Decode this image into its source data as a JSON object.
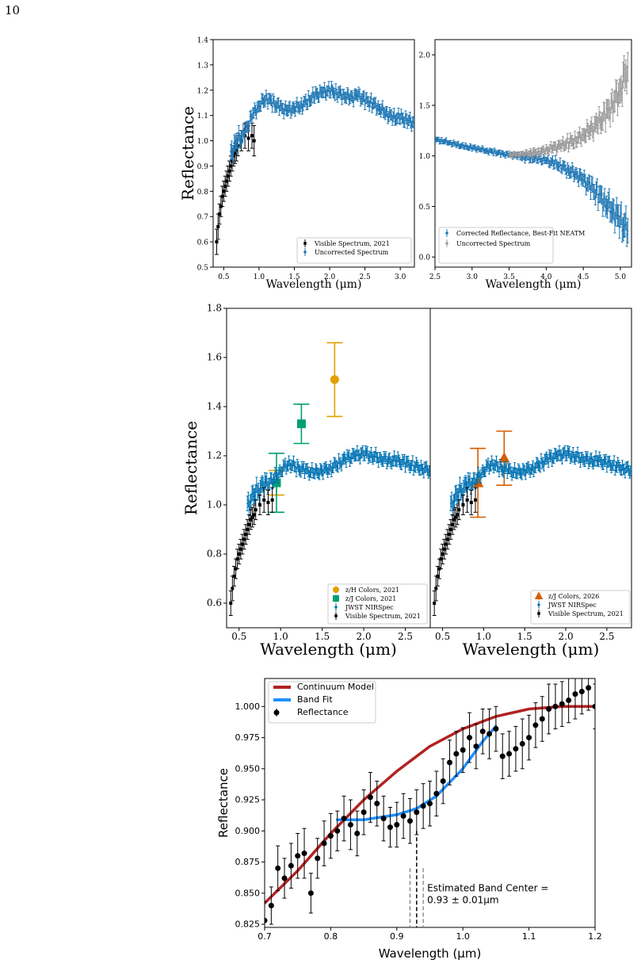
{
  "page_number": "10",
  "colors": {
    "blue": "#1f77b4",
    "nirspec": "#0072b2",
    "black": "#000000",
    "gray": "#999999",
    "orange": "#e69f00",
    "green": "#009e73",
    "vermilion": "#d55e00",
    "red": "#b22222",
    "bandfit": "#1e90ff"
  },
  "chart_data": [
    {
      "id": "top-left",
      "type": "scatter",
      "xlabel": "Wavelength (μm)",
      "ylabel": "Reflectance",
      "xlim": [
        0.35,
        3.2
      ],
      "ylim": [
        0.5,
        1.4
      ],
      "xticks": [
        "0.5",
        "1.0",
        "1.5",
        "2.0",
        "2.5",
        "3.0"
      ],
      "yticks": [
        "0.5",
        "0.6",
        "0.7",
        "0.8",
        "0.9",
        "1.0",
        "1.1",
        "1.2",
        "1.3",
        "1.4"
      ],
      "legend": "lower-right",
      "series": [
        {
          "name": "Visible Spectrum, 2021",
          "color": "#000000",
          "marker": "square",
          "x": [
            0.4,
            0.42,
            0.44,
            0.46,
            0.48,
            0.5,
            0.52,
            0.54,
            0.56,
            0.58,
            0.6,
            0.62,
            0.64,
            0.66,
            0.68,
            0.7,
            0.75,
            0.8,
            0.85,
            0.9,
            0.93
          ],
          "y": [
            0.6,
            0.66,
            0.71,
            0.74,
            0.78,
            0.8,
            0.82,
            0.84,
            0.86,
            0.88,
            0.9,
            0.92,
            0.94,
            0.95,
            0.96,
            0.98,
            1.0,
            1.02,
            1.01,
            1.02,
            1.0
          ],
          "err": [
            0.05,
            0.05,
            0.04,
            0.04,
            0.04,
            0.04,
            0.04,
            0.04,
            0.04,
            0.04,
            0.04,
            0.04,
            0.04,
            0.04,
            0.04,
            0.04,
            0.04,
            0.05,
            0.05,
            0.05,
            0.06
          ]
        },
        {
          "name": "Uncorrected Spectrum",
          "color": "#1f77b4",
          "marker": "dot",
          "x": [
            0.6,
            0.7,
            0.8,
            0.9,
            1.0,
            1.1,
            1.2,
            1.3,
            1.4,
            1.5,
            1.6,
            1.7,
            1.8,
            1.9,
            2.0,
            2.1,
            2.2,
            2.3,
            2.4,
            2.5,
            2.6,
            2.7,
            2.8,
            2.9,
            3.0,
            3.1,
            3.2
          ],
          "y": [
            0.95,
            1.0,
            1.03,
            1.1,
            1.14,
            1.17,
            1.15,
            1.13,
            1.12,
            1.13,
            1.14,
            1.16,
            1.18,
            1.19,
            1.2,
            1.19,
            1.18,
            1.17,
            1.18,
            1.16,
            1.15,
            1.13,
            1.11,
            1.09,
            1.09,
            1.08,
            1.07
          ],
          "err": [
            0.03,
            0.03,
            0.02,
            0.02,
            0.02,
            0.02,
            0.02,
            0.02,
            0.02,
            0.02,
            0.02,
            0.02,
            0.02,
            0.02,
            0.02,
            0.02,
            0.02,
            0.02,
            0.02,
            0.02,
            0.02,
            0.02,
            0.02,
            0.02,
            0.02,
            0.02,
            0.02
          ]
        }
      ]
    },
    {
      "id": "top-right",
      "type": "scatter",
      "xlabel": "Wavelength (μm)",
      "ylabel": "",
      "xlim": [
        2.5,
        5.15
      ],
      "ylim": [
        -0.1,
        2.15
      ],
      "xticks": [
        "2.5",
        "3.0",
        "3.5",
        "4.0",
        "4.5",
        "5.0"
      ],
      "yticks": [
        "0.0",
        "0.5",
        "1.0",
        "1.5",
        "2.0"
      ],
      "legend": "lower-left",
      "series": [
        {
          "name": "Corrected Reflectance, Best-Fit NEATM",
          "color": "#1f77b4",
          "marker": "dot",
          "x": [
            2.5,
            2.6,
            2.7,
            2.8,
            2.9,
            3.0,
            3.1,
            3.2,
            3.3,
            3.4,
            3.5,
            3.6,
            3.7,
            3.8,
            3.9,
            4.0,
            4.1,
            4.2,
            4.3,
            4.4,
            4.5,
            4.6,
            4.7,
            4.8,
            4.9,
            5.0,
            5.1
          ],
          "y": [
            1.16,
            1.15,
            1.13,
            1.11,
            1.09,
            1.08,
            1.07,
            1.05,
            1.04,
            1.02,
            1.01,
            1.0,
            0.99,
            0.98,
            0.97,
            0.95,
            0.93,
            0.9,
            0.86,
            0.82,
            0.76,
            0.69,
            0.62,
            0.54,
            0.46,
            0.36,
            0.26
          ],
          "err": [
            0.02,
            0.02,
            0.02,
            0.02,
            0.02,
            0.02,
            0.02,
            0.02,
            0.02,
            0.02,
            0.02,
            0.02,
            0.03,
            0.03,
            0.03,
            0.03,
            0.04,
            0.04,
            0.05,
            0.05,
            0.06,
            0.07,
            0.08,
            0.09,
            0.1,
            0.11,
            0.12
          ]
        },
        {
          "name": "Uncorrected Spectrum",
          "color": "#999999",
          "marker": "dot",
          "x": [
            3.5,
            3.6,
            3.7,
            3.8,
            3.9,
            4.0,
            4.1,
            4.2,
            4.3,
            4.4,
            4.5,
            4.6,
            4.7,
            4.8,
            4.9,
            5.0,
            5.1
          ],
          "y": [
            1.01,
            1.01,
            1.02,
            1.03,
            1.04,
            1.06,
            1.08,
            1.1,
            1.13,
            1.16,
            1.21,
            1.26,
            1.32,
            1.4,
            1.52,
            1.66,
            1.88
          ],
          "err": [
            0.02,
            0.02,
            0.02,
            0.03,
            0.03,
            0.03,
            0.04,
            0.04,
            0.05,
            0.05,
            0.06,
            0.07,
            0.08,
            0.09,
            0.1,
            0.12,
            0.14
          ]
        }
      ]
    },
    {
      "id": "middle-left",
      "type": "scatter",
      "xlabel": "Wavelength (μm)",
      "ylabel": "Reflectance",
      "xlim": [
        0.35,
        2.8
      ],
      "ylim": [
        0.5,
        1.8
      ],
      "xticks": [
        "0.5",
        "1.0",
        "1.5",
        "2.0",
        "2.5"
      ],
      "yticks": [
        "0.6",
        "0.8",
        "1.0",
        "1.2",
        "1.4",
        "1.6",
        "1.8"
      ],
      "legend": "lower-right",
      "series": [
        {
          "name": "z/H Colors, 2021",
          "color": "#e69f00",
          "marker": "circle",
          "x": [
            0.95,
            1.65
          ],
          "y": [
            1.09,
            1.51
          ],
          "err": [
            0.05,
            0.15
          ]
        },
        {
          "name": "z/J Colors, 2021",
          "color": "#009e73",
          "marker": "square",
          "x": [
            0.95,
            1.25
          ],
          "y": [
            1.09,
            1.33
          ],
          "err": [
            0.12,
            0.08
          ]
        },
        {
          "name": "JWST NIRSpec",
          "color": "#0072b2",
          "marker": "dot",
          "x": [
            0.6,
            0.7,
            0.8,
            0.9,
            1.0,
            1.1,
            1.2,
            1.3,
            1.4,
            1.5,
            1.6,
            1.7,
            1.8,
            1.9,
            2.0,
            2.1,
            2.2,
            2.3,
            2.4,
            2.5,
            2.6,
            2.7,
            2.8
          ],
          "y": [
            1.0,
            1.05,
            1.08,
            1.1,
            1.14,
            1.17,
            1.15,
            1.14,
            1.13,
            1.14,
            1.15,
            1.17,
            1.19,
            1.2,
            1.21,
            1.2,
            1.19,
            1.18,
            1.18,
            1.17,
            1.16,
            1.15,
            1.14
          ],
          "err": [
            0.03,
            0.03,
            0.03,
            0.02,
            0.02,
            0.02,
            0.02,
            0.02,
            0.02,
            0.02,
            0.02,
            0.02,
            0.02,
            0.02,
            0.02,
            0.02,
            0.02,
            0.02,
            0.02,
            0.02,
            0.02,
            0.02,
            0.02
          ]
        },
        {
          "name": "Visible Spectrum, 2021",
          "color": "#000000",
          "marker": "square",
          "x": [
            0.4,
            0.42,
            0.44,
            0.46,
            0.48,
            0.5,
            0.52,
            0.54,
            0.56,
            0.58,
            0.6,
            0.62,
            0.64,
            0.66,
            0.68,
            0.7,
            0.75,
            0.8,
            0.85,
            0.9
          ],
          "y": [
            0.6,
            0.66,
            0.71,
            0.74,
            0.78,
            0.8,
            0.82,
            0.84,
            0.86,
            0.88,
            0.9,
            0.92,
            0.94,
            0.95,
            0.96,
            0.98,
            1.0,
            1.02,
            1.01,
            1.02
          ],
          "err": [
            0.05,
            0.05,
            0.04,
            0.04,
            0.04,
            0.04,
            0.04,
            0.04,
            0.04,
            0.04,
            0.04,
            0.04,
            0.04,
            0.04,
            0.04,
            0.04,
            0.04,
            0.05,
            0.05,
            0.05
          ]
        }
      ]
    },
    {
      "id": "middle-right",
      "type": "scatter",
      "xlabel": "Wavelength (μm)",
      "ylabel": "",
      "xlim": [
        0.35,
        2.8
      ],
      "ylim": [
        0.5,
        1.8
      ],
      "xticks": [
        "0.5",
        "1.0",
        "1.5",
        "2.0",
        "2.5"
      ],
      "yticks": [],
      "legend": "lower-right",
      "series": [
        {
          "name": "z/J Colors, 2026",
          "color": "#d55e00",
          "marker": "triangle",
          "x": [
            0.93,
            1.25
          ],
          "y": [
            1.09,
            1.19
          ],
          "err": [
            0.14,
            0.11
          ]
        },
        {
          "name": "JWST NIRSpec",
          "color": "#0072b2",
          "marker": "dot",
          "x": [
            0.6,
            0.7,
            0.8,
            0.9,
            1.0,
            1.1,
            1.2,
            1.3,
            1.4,
            1.5,
            1.6,
            1.7,
            1.8,
            1.9,
            2.0,
            2.1,
            2.2,
            2.3,
            2.4,
            2.5,
            2.6,
            2.7,
            2.8
          ],
          "y": [
            1.0,
            1.05,
            1.08,
            1.1,
            1.14,
            1.17,
            1.15,
            1.14,
            1.13,
            1.14,
            1.15,
            1.17,
            1.19,
            1.2,
            1.21,
            1.2,
            1.19,
            1.18,
            1.18,
            1.17,
            1.16,
            1.15,
            1.14
          ],
          "err": [
            0.03,
            0.03,
            0.03,
            0.02,
            0.02,
            0.02,
            0.02,
            0.02,
            0.02,
            0.02,
            0.02,
            0.02,
            0.02,
            0.02,
            0.02,
            0.02,
            0.02,
            0.02,
            0.02,
            0.02,
            0.02,
            0.02,
            0.02
          ]
        },
        {
          "name": "Visible Spectrum, 2021",
          "color": "#000000",
          "marker": "square",
          "x": [
            0.4,
            0.42,
            0.44,
            0.46,
            0.48,
            0.5,
            0.52,
            0.54,
            0.56,
            0.58,
            0.6,
            0.62,
            0.64,
            0.66,
            0.68,
            0.7,
            0.75,
            0.8,
            0.85,
            0.9
          ],
          "y": [
            0.6,
            0.66,
            0.71,
            0.74,
            0.78,
            0.8,
            0.82,
            0.84,
            0.86,
            0.88,
            0.9,
            0.92,
            0.94,
            0.95,
            0.96,
            0.98,
            1.0,
            1.02,
            1.01,
            1.02
          ],
          "err": [
            0.05,
            0.05,
            0.04,
            0.04,
            0.04,
            0.04,
            0.04,
            0.04,
            0.04,
            0.04,
            0.04,
            0.04,
            0.04,
            0.04,
            0.04,
            0.04,
            0.04,
            0.05,
            0.05,
            0.05
          ]
        }
      ]
    },
    {
      "id": "bottom",
      "type": "scatter",
      "xlabel": "Wavelength (μm)",
      "ylabel": "Reflectance",
      "xlim": [
        0.7,
        1.2
      ],
      "ylim": [
        0.8225,
        1.0225
      ],
      "xticks": [
        "0.7",
        "0.8",
        "0.9",
        "1.0",
        "1.1",
        "1.2"
      ],
      "yticks": [
        "0.825",
        "0.850",
        "0.875",
        "0.900",
        "0.925",
        "0.950",
        "0.975",
        "1.000"
      ],
      "legend": "upper-left",
      "annotation": {
        "line1": "Estimated Band Center =",
        "line2": "0.93 ± 0.01μm",
        "center": 0.93,
        "lower": 0.92,
        "upper": 0.94
      },
      "series": [
        {
          "name": "Continuum Model",
          "color": "#b22222",
          "kind": "line",
          "x": [
            0.7,
            0.75,
            0.8,
            0.85,
            0.9,
            0.95,
            1.0,
            1.05,
            1.1,
            1.15,
            1.2
          ],
          "y": [
            0.842,
            0.868,
            0.898,
            0.925,
            0.948,
            0.968,
            0.982,
            0.992,
            0.998,
            1.0,
            1.0
          ]
        },
        {
          "name": "Band Fit",
          "color": "#1e90ff",
          "kind": "line",
          "x": [
            0.81,
            0.85,
            0.9,
            0.93,
            0.96,
            1.0,
            1.03,
            1.05
          ],
          "y": [
            0.909,
            0.909,
            0.913,
            0.918,
            0.928,
            0.95,
            0.972,
            0.984
          ]
        },
        {
          "name": "Reflectance",
          "color": "#000000",
          "kind": "points",
          "x": [
            0.7,
            0.71,
            0.72,
            0.73,
            0.74,
            0.75,
            0.76,
            0.77,
            0.78,
            0.79,
            0.8,
            0.81,
            0.82,
            0.83,
            0.84,
            0.85,
            0.86,
            0.87,
            0.88,
            0.89,
            0.9,
            0.91,
            0.92,
            0.93,
            0.94,
            0.95,
            0.96,
            0.97,
            0.98,
            0.99,
            1.0,
            1.01,
            1.02,
            1.03,
            1.04,
            1.05,
            1.06,
            1.07,
            1.08,
            1.09,
            1.1,
            1.11,
            1.12,
            1.13,
            1.14,
            1.15,
            1.16,
            1.17,
            1.18,
            1.19,
            1.2
          ],
          "y": [
            0.828,
            0.84,
            0.87,
            0.862,
            0.872,
            0.88,
            0.882,
            0.85,
            0.878,
            0.89,
            0.896,
            0.9,
            0.91,
            0.905,
            0.898,
            0.915,
            0.927,
            0.922,
            0.91,
            0.903,
            0.905,
            0.912,
            0.908,
            0.915,
            0.92,
            0.922,
            0.93,
            0.94,
            0.955,
            0.962,
            0.965,
            0.975,
            0.968,
            0.98,
            0.978,
            0.982,
            0.96,
            0.962,
            0.966,
            0.97,
            0.975,
            0.985,
            0.99,
            0.998,
            1.0,
            1.002,
            1.005,
            1.01,
            1.012,
            1.015,
            1.0
          ],
          "err": [
            0.015,
            0.015,
            0.018,
            0.016,
            0.018,
            0.018,
            0.02,
            0.016,
            0.016,
            0.018,
            0.018,
            0.016,
            0.018,
            0.02,
            0.018,
            0.018,
            0.02,
            0.018,
            0.018,
            0.016,
            0.018,
            0.018,
            0.018,
            0.018,
            0.018,
            0.018,
            0.018,
            0.018,
            0.018,
            0.018,
            0.018,
            0.02,
            0.018,
            0.018,
            0.02,
            0.018,
            0.018,
            0.018,
            0.018,
            0.02,
            0.018,
            0.018,
            0.018,
            0.02,
            0.018,
            0.018,
            0.018,
            0.02,
            0.018,
            0.018,
            0.018
          ]
        }
      ]
    }
  ]
}
